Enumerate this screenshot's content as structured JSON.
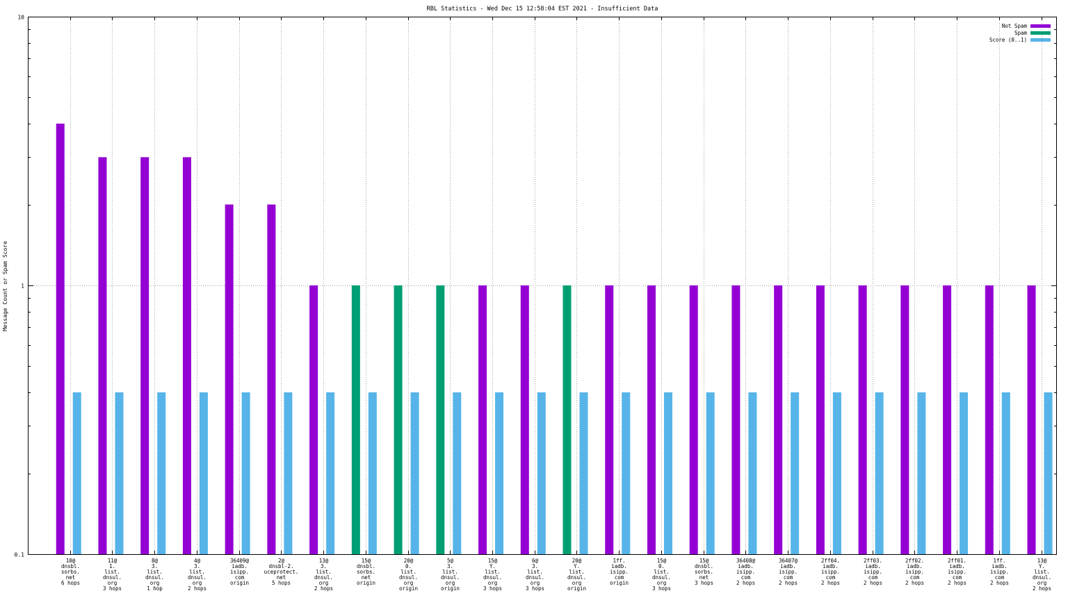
{
  "chart_data": {
    "type": "bar",
    "title": "RBL Statistics - Wed Dec 15 12:58:04 EST 2021 - Insufficient Data",
    "ylabel": "Message Count or Spam Score",
    "xlabel": "",
    "yscale": "log",
    "ylim": [
      0.1,
      10
    ],
    "yticks": [
      {
        "value": 0.1,
        "label": "0.1"
      },
      {
        "value": 1,
        "label": "1"
      },
      {
        "value": 10,
        "label": "10"
      }
    ],
    "grid": true,
    "legend_position": "top-right",
    "categories": [
      [
        "10@",
        "dnsbl.",
        "sorbs.",
        "net",
        "6 hops"
      ],
      [
        "11@",
        "1.",
        "list.",
        "dnsul.",
        "org",
        "3 hops"
      ],
      [
        "8@",
        "3.",
        "list.",
        "dnsul.",
        "org",
        "1 hop"
      ],
      [
        "4@",
        "3.",
        "list.",
        "dnsul.",
        "org",
        "2 hops"
      ],
      [
        "36409@",
        "iadb.",
        "isipp.",
        "com",
        "origin"
      ],
      [
        "2@",
        "dnsbl-2.",
        "uceprotect.",
        "net",
        "5 hops"
      ],
      [
        "13@",
        "3.",
        "list.",
        "dnsul.",
        "org",
        "2 hops"
      ],
      [
        "15@",
        "dnsbl.",
        "sorbs.",
        "net",
        "origin"
      ],
      [
        "20@",
        "0.",
        "list.",
        "dnsul.",
        "org",
        "origin"
      ],
      [
        "5@",
        "3.",
        "list.",
        "dnsul.",
        "org",
        "origin"
      ],
      [
        "15@",
        "Y.",
        "list.",
        "dnsul.",
        "org",
        "3 hops"
      ],
      [
        "6@",
        "3.",
        "list.",
        "dnsul.",
        "org",
        "3 hops"
      ],
      [
        "20@",
        "Y.",
        "list.",
        "dnsul.",
        "org",
        "origin"
      ],
      [
        "1ff.",
        "iadb.",
        "isipp.",
        "com",
        "origin"
      ],
      [
        "15@",
        "0.",
        "list.",
        "dnsul.",
        "org",
        "3 hops"
      ],
      [
        "15@",
        "dnsbl.",
        "sorbs.",
        "net",
        "3 hops"
      ],
      [
        "36408@",
        "iadb.",
        "isipp.",
        "com",
        "2 hops"
      ],
      [
        "36407@",
        "iadb.",
        "isipp.",
        "com",
        "2 hops"
      ],
      [
        "2ff04.",
        "iadb.",
        "isipp.",
        "com",
        "2 hops"
      ],
      [
        "2ff03.",
        "iadb.",
        "isipp.",
        "com",
        "2 hops"
      ],
      [
        "2ff02.",
        "iadb.",
        "isipp.",
        "com",
        "2 hops"
      ],
      [
        "2ff01.",
        "iadb.",
        "isipp.",
        "com",
        "2 hops"
      ],
      [
        "1ff.",
        "iadb.",
        "isipp.",
        "com",
        "2 hops"
      ],
      [
        "13@",
        "Y.",
        "list.",
        "dnsul.",
        "org",
        "2 hops"
      ]
    ],
    "series": [
      {
        "name": "Not Spam",
        "color": "#9400d3",
        "values": [
          4,
          3,
          3,
          3,
          2,
          2,
          1,
          null,
          null,
          null,
          1,
          1,
          null,
          1,
          1,
          1,
          1,
          1,
          1,
          1,
          1,
          1,
          1,
          1
        ]
      },
      {
        "name": "Spam",
        "color": "#009e73",
        "values": [
          null,
          null,
          null,
          null,
          null,
          null,
          null,
          1,
          1,
          1,
          null,
          null,
          1,
          null,
          null,
          null,
          null,
          null,
          null,
          null,
          null,
          null,
          null,
          null
        ]
      },
      {
        "name": "Score (0..1)",
        "color": "#56b4e9",
        "values": [
          0.4,
          0.4,
          0.4,
          0.4,
          0.4,
          0.4,
          0.4,
          0.4,
          0.4,
          0.4,
          0.4,
          0.4,
          0.4,
          0.4,
          0.4,
          0.4,
          0.4,
          0.4,
          0.4,
          0.4,
          0.4,
          0.4,
          0.4,
          0.4
        ]
      }
    ]
  }
}
